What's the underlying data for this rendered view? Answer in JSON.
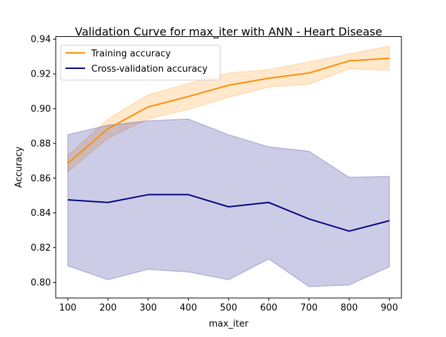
{
  "chart_data": {
    "type": "line",
    "title": "Validation Curve for max_iter with ANN - Heart Disease",
    "xlabel": "max_iter",
    "ylabel": "Accuracy",
    "x": [
      100,
      200,
      300,
      400,
      500,
      600,
      700,
      800,
      900
    ],
    "xlim": [
      70,
      930
    ],
    "ylim": [
      0.791,
      0.9415
    ],
    "xticks": [
      "100",
      "200",
      "300",
      "400",
      "500",
      "600",
      "700",
      "800",
      "900"
    ],
    "yticks": [
      "0.80",
      "0.82",
      "0.84",
      "0.86",
      "0.88",
      "0.90",
      "0.92",
      "0.94"
    ],
    "legend_position": "upper-left",
    "grid": false,
    "series": [
      {
        "name": "Training accuracy",
        "color": "#ff8c00",
        "values": [
          0.8685,
          0.8885,
          0.901,
          0.907,
          0.9135,
          0.9175,
          0.9205,
          0.9275,
          0.929
        ],
        "upper": [
          0.873,
          0.894,
          0.908,
          0.9145,
          0.9205,
          0.9225,
          0.927,
          0.9315,
          0.936
        ],
        "lower": [
          0.8635,
          0.883,
          0.894,
          0.8995,
          0.9065,
          0.9125,
          0.914,
          0.923,
          0.922
        ]
      },
      {
        "name": "Cross-validation accuracy",
        "color": "#000080",
        "values": [
          0.8475,
          0.846,
          0.8505,
          0.8505,
          0.8435,
          0.846,
          0.8365,
          0.8295,
          0.8355
        ],
        "upper": [
          0.885,
          0.8905,
          0.893,
          0.894,
          0.885,
          0.878,
          0.8755,
          0.8605,
          0.861
        ],
        "lower": [
          0.8095,
          0.8015,
          0.8075,
          0.806,
          0.8015,
          0.8135,
          0.7975,
          0.7985,
          0.809
        ]
      }
    ]
  }
}
